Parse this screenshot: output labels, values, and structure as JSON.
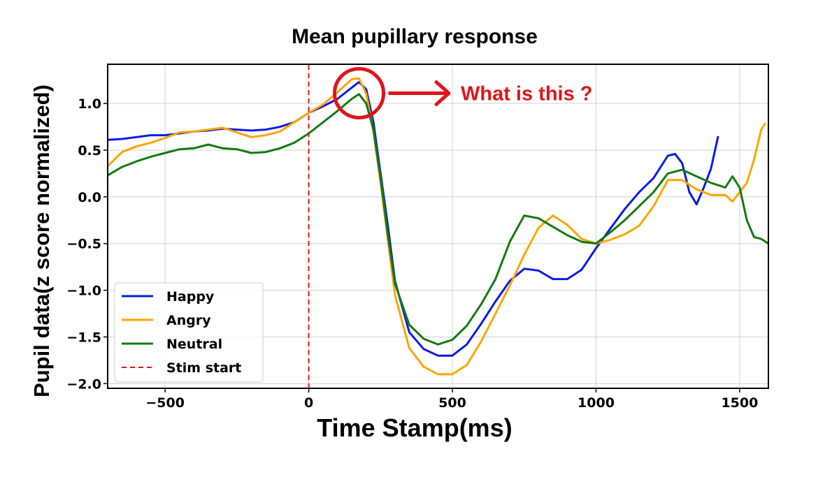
{
  "chart_data": {
    "type": "line",
    "title": "Mean pupillary response",
    "xlabel": "Time Stamp(ms)",
    "ylabel": "Pupil data(z score normalized)",
    "xlim": [
      -700,
      1600
    ],
    "ylim": [
      -2.05,
      1.42
    ],
    "xticks": [
      -500,
      0,
      500,
      1000,
      1500
    ],
    "yticks": [
      -2.0,
      -1.5,
      -1.0,
      -0.5,
      0.0,
      0.5,
      1.0
    ],
    "xtick_labels": [
      "−500",
      "0",
      "500",
      "1000",
      "1500"
    ],
    "ytick_labels": [
      "−2.0",
      "−1.5",
      "−1.0",
      "−0.5",
      "0.0",
      "0.5",
      "1.0"
    ],
    "grid": true,
    "legend_position": "lower-left",
    "series": [
      {
        "name": "Happy",
        "color": "#0a1be6",
        "x": [
          -700,
          -650,
          -600,
          -550,
          -500,
          -450,
          -400,
          -350,
          -300,
          -250,
          -200,
          -150,
          -100,
          -50,
          0,
          50,
          100,
          150,
          175,
          200,
          225,
          250,
          275,
          300,
          350,
          400,
          450,
          500,
          550,
          600,
          650,
          700,
          750,
          800,
          850,
          900,
          950,
          1000,
          1050,
          1100,
          1150,
          1200,
          1250,
          1275,
          1300,
          1325,
          1350,
          1375,
          1400,
          1425
        ],
        "y": [
          0.61,
          0.62,
          0.64,
          0.66,
          0.66,
          0.68,
          0.7,
          0.71,
          0.73,
          0.72,
          0.71,
          0.72,
          0.75,
          0.8,
          0.9,
          0.97,
          1.05,
          1.17,
          1.23,
          1.15,
          0.8,
          0.25,
          -0.3,
          -0.9,
          -1.45,
          -1.63,
          -1.7,
          -1.7,
          -1.58,
          -1.36,
          -1.12,
          -0.9,
          -0.77,
          -0.79,
          -0.88,
          -0.88,
          -0.78,
          -0.55,
          -0.34,
          -0.13,
          0.05,
          0.2,
          0.44,
          0.46,
          0.36,
          0.05,
          -0.08,
          0.1,
          0.3,
          0.65
        ]
      },
      {
        "name": "Angry",
        "color": "#ffa500",
        "x": [
          -700,
          -650,
          -600,
          -550,
          -500,
          -450,
          -400,
          -350,
          -300,
          -250,
          -200,
          -150,
          -100,
          -50,
          0,
          50,
          100,
          150,
          175,
          200,
          225,
          250,
          275,
          300,
          350,
          400,
          450,
          500,
          550,
          600,
          650,
          700,
          750,
          800,
          850,
          900,
          950,
          1000,
          1050,
          1100,
          1150,
          1200,
          1250,
          1300,
          1350,
          1400,
          1450,
          1475,
          1500,
          1525,
          1550,
          1575,
          1590
        ],
        "y": [
          0.33,
          0.48,
          0.54,
          0.58,
          0.63,
          0.69,
          0.7,
          0.72,
          0.74,
          0.69,
          0.64,
          0.66,
          0.7,
          0.8,
          0.9,
          0.99,
          1.12,
          1.26,
          1.27,
          1.1,
          0.7,
          0.15,
          -0.45,
          -1.05,
          -1.62,
          -1.82,
          -1.9,
          -1.9,
          -1.8,
          -1.55,
          -1.25,
          -0.95,
          -0.62,
          -0.33,
          -0.2,
          -0.3,
          -0.45,
          -0.5,
          -0.46,
          -0.4,
          -0.31,
          -0.1,
          0.18,
          0.18,
          0.08,
          0.02,
          0.02,
          -0.05,
          0.05,
          0.15,
          0.4,
          0.72,
          0.79
        ]
      },
      {
        "name": "Neutral",
        "color": "#137a11",
        "x": [
          -700,
          -650,
          -600,
          -550,
          -500,
          -450,
          -400,
          -350,
          -300,
          -250,
          -200,
          -150,
          -100,
          -50,
          0,
          50,
          100,
          150,
          175,
          200,
          225,
          250,
          275,
          300,
          350,
          400,
          450,
          500,
          550,
          600,
          650,
          700,
          750,
          800,
          850,
          900,
          950,
          1000,
          1050,
          1100,
          1150,
          1200,
          1250,
          1300,
          1350,
          1400,
          1450,
          1475,
          1500,
          1525,
          1550,
          1575,
          1600
        ],
        "y": [
          0.23,
          0.32,
          0.38,
          0.43,
          0.47,
          0.51,
          0.52,
          0.56,
          0.52,
          0.51,
          0.47,
          0.48,
          0.52,
          0.58,
          0.68,
          0.8,
          0.92,
          1.05,
          1.1,
          1.0,
          0.72,
          0.2,
          -0.4,
          -0.93,
          -1.37,
          -1.52,
          -1.58,
          -1.53,
          -1.38,
          -1.15,
          -0.88,
          -0.48,
          -0.2,
          -0.23,
          -0.32,
          -0.41,
          -0.48,
          -0.5,
          -0.38,
          -0.25,
          -0.1,
          0.05,
          0.25,
          0.29,
          0.22,
          0.15,
          0.1,
          0.22,
          0.1,
          -0.25,
          -0.43,
          -0.45,
          -0.5
        ]
      },
      {
        "name": "Stim start",
        "color": "#e0151b",
        "style": "dashed",
        "x": [
          0,
          0
        ],
        "y": [
          -2.05,
          1.42
        ]
      }
    ],
    "annotations": [
      {
        "type": "circle",
        "x": 175,
        "y": 1.11,
        "color": "#e0151b"
      },
      {
        "type": "arrow-text",
        "text": "What is this ?",
        "color": "#e0151b"
      }
    ]
  }
}
